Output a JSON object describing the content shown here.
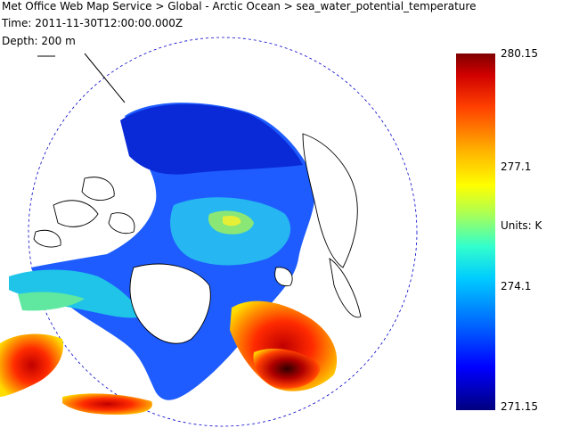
{
  "header": {
    "title": "Met Office Web Map Service > Global - Arctic Ocean > sea_water_potential_temperature",
    "time": "Time: 2011-11-30T12:00:00.000Z",
    "depth": "Depth: 200 m"
  },
  "legend": {
    "max": "280.15",
    "upper": "277.1",
    "units": "Units: K",
    "lower": "274.1",
    "min": "271.15"
  },
  "colors": {
    "cold": "#0000ff",
    "mid": "#00ccff",
    "warm": "#ffff00",
    "hot": "#ff0000",
    "hottest": "#7f0000",
    "coast": "#000000",
    "boundary": "#0000cc"
  }
}
